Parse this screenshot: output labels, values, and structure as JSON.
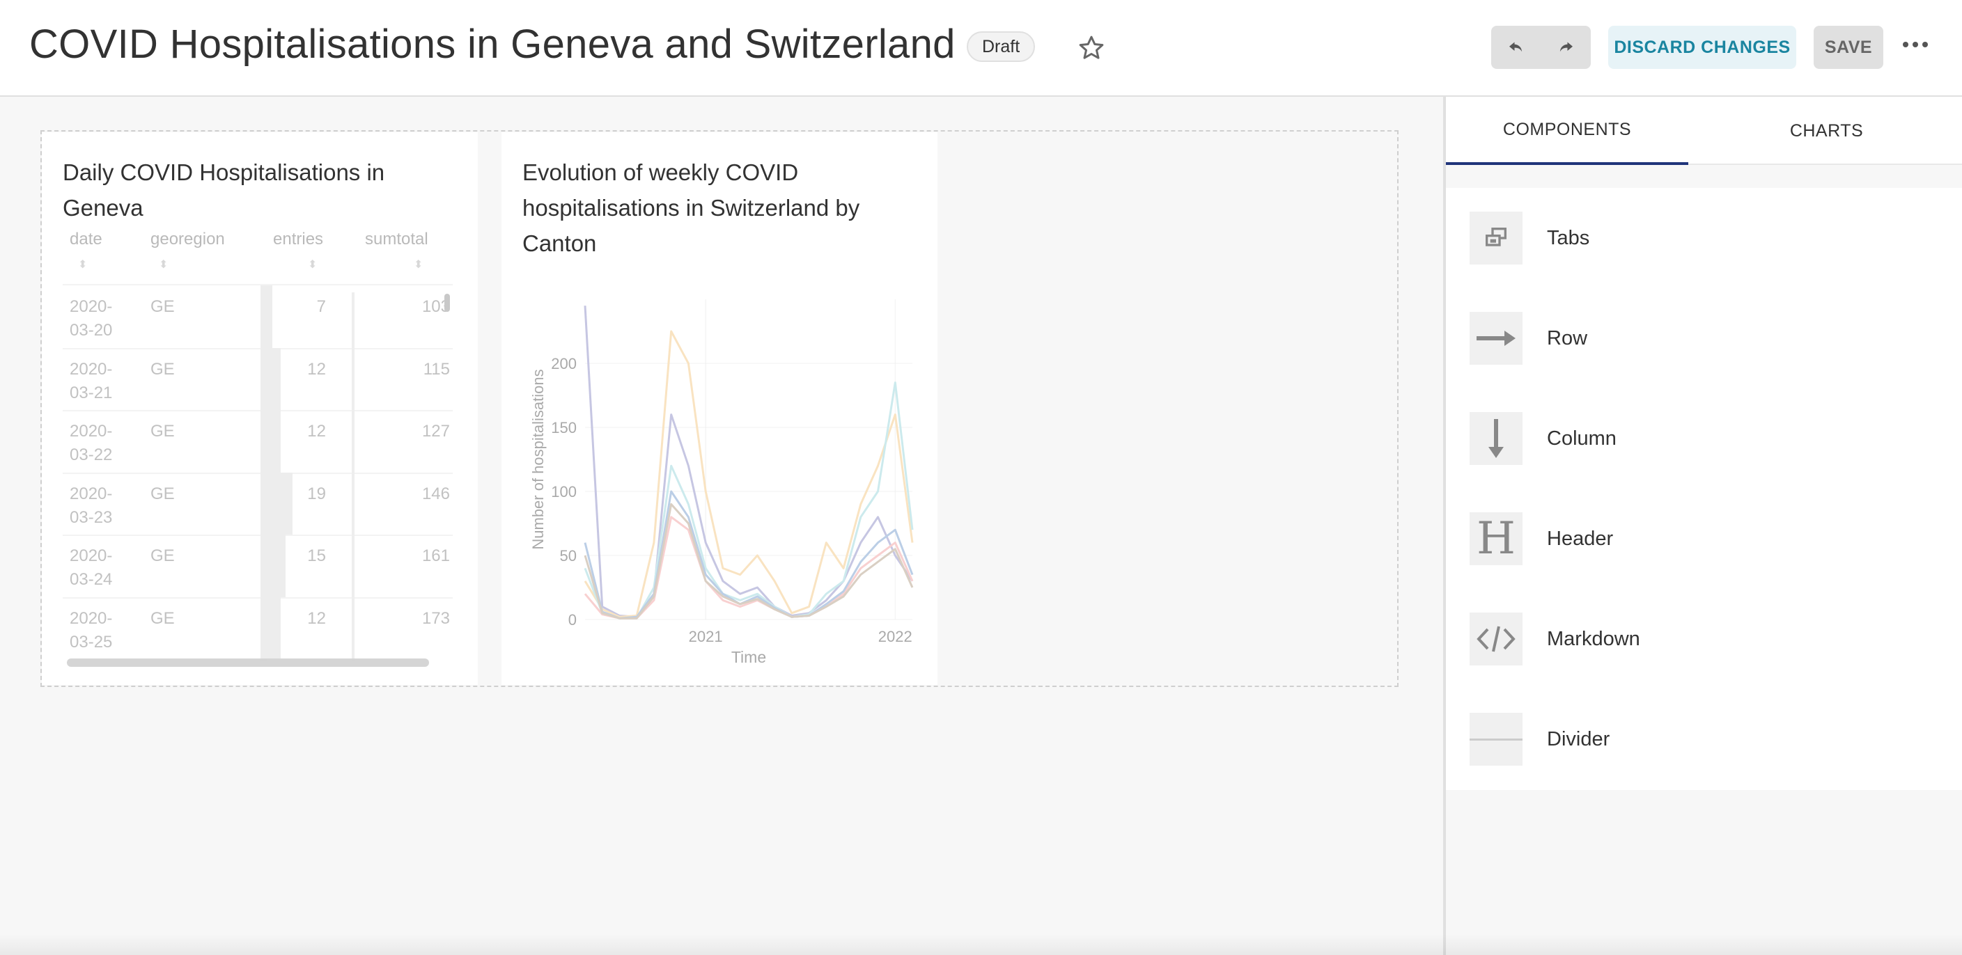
{
  "header": {
    "title": "COVID Hospitalisations in Geneva and Switzerland",
    "status_badge": "Draft",
    "discard_label": "DISCARD CHANGES",
    "save_label": "SAVE"
  },
  "charts": {
    "table_card": {
      "title": "Daily COVID Hospitalisations in Geneva",
      "columns": [
        "date",
        "georegion",
        "entries",
        "sumtotal"
      ],
      "rows": [
        {
          "date_l1": "2020-",
          "date_l2": "03-20",
          "georegion": "GE",
          "entries": "7",
          "sumtotal": "103"
        },
        {
          "date_l1": "2020-",
          "date_l2": "03-21",
          "georegion": "GE",
          "entries": "12",
          "sumtotal": "115"
        },
        {
          "date_l1": "2020-",
          "date_l2": "03-22",
          "georegion": "GE",
          "entries": "12",
          "sumtotal": "127"
        },
        {
          "date_l1": "2020-",
          "date_l2": "03-23",
          "georegion": "GE",
          "entries": "19",
          "sumtotal": "146"
        },
        {
          "date_l1": "2020-",
          "date_l2": "03-24",
          "georegion": "GE",
          "entries": "15",
          "sumtotal": "161"
        },
        {
          "date_l1": "2020-",
          "date_l2": "03-25",
          "georegion": "GE",
          "entries": "12",
          "sumtotal": "173"
        }
      ]
    },
    "line_card": {
      "title": "Evolution of weekly COVID hospitalisations in Switzerland by Canton"
    }
  },
  "chart_data": {
    "type": "line",
    "xlabel": "Time",
    "ylabel": "Number of hospitalisations",
    "x_tick_labels": [
      "2021",
      "2022"
    ],
    "y_ticks": [
      0,
      50,
      100,
      150,
      200
    ],
    "ylim": [
      0,
      250
    ],
    "grid": true,
    "x": [
      "2020-03",
      "2020-05",
      "2020-07",
      "2020-09",
      "2020-10",
      "2020-11",
      "2020-12",
      "2021-01",
      "2021-02",
      "2021-03",
      "2021-04",
      "2021-05",
      "2021-06",
      "2021-08",
      "2021-09",
      "2021-10",
      "2021-11",
      "2021-12",
      "2022-01",
      "2022-02"
    ],
    "series": [
      {
        "color": "#8e8ec7",
        "values": [
          245,
          10,
          3,
          2,
          20,
          160,
          120,
          60,
          30,
          20,
          25,
          10,
          3,
          5,
          15,
          30,
          60,
          80,
          50,
          30
        ]
      },
      {
        "color": "#f5c884",
        "values": [
          30,
          8,
          2,
          3,
          60,
          225,
          200,
          100,
          40,
          35,
          50,
          30,
          5,
          10,
          60,
          40,
          90,
          120,
          160,
          60
        ]
      },
      {
        "color": "#9ad7dc",
        "values": [
          40,
          5,
          1,
          1,
          25,
          120,
          90,
          40,
          20,
          15,
          20,
          10,
          2,
          4,
          20,
          30,
          80,
          100,
          185,
          70
        ]
      },
      {
        "color": "#f2a3a3",
        "values": [
          20,
          4,
          1,
          1,
          15,
          80,
          70,
          30,
          15,
          10,
          15,
          8,
          2,
          3,
          10,
          20,
          40,
          50,
          60,
          30
        ]
      },
      {
        "color": "#7a9fcf",
        "values": [
          60,
          6,
          1,
          2,
          20,
          100,
          80,
          35,
          20,
          12,
          18,
          9,
          2,
          3,
          12,
          22,
          45,
          60,
          70,
          35
        ]
      },
      {
        "color": "#b4a088",
        "values": [
          50,
          5,
          1,
          1,
          18,
          90,
          75,
          30,
          18,
          12,
          16,
          8,
          2,
          3,
          10,
          18,
          35,
          45,
          55,
          25
        ]
      }
    ]
  },
  "panel": {
    "tabs": [
      "COMPONENTS",
      "CHARTS"
    ],
    "components": [
      {
        "label": "Tabs",
        "icon": "tabs-icon"
      },
      {
        "label": "Row",
        "icon": "arrow-right-icon"
      },
      {
        "label": "Column",
        "icon": "arrow-down-icon"
      },
      {
        "label": "Header",
        "icon": "header-icon"
      },
      {
        "label": "Markdown",
        "icon": "code-icon"
      },
      {
        "label": "Divider",
        "icon": "divider-icon"
      }
    ]
  },
  "colors": {
    "accent": "#20347a",
    "discard_text": "#1a85a0",
    "discard_bg": "#e7f3f7"
  }
}
